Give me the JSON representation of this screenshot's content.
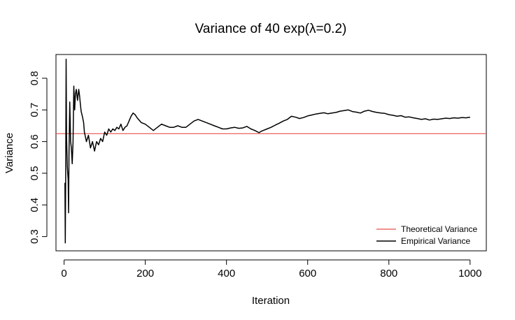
{
  "chart_data": {
    "type": "line",
    "title": "Variance of 40 exp(λ=0.2)",
    "xlabel": "Iteration",
    "ylabel": "Variance",
    "xlim": [
      -20,
      1040
    ],
    "ylim": [
      0.255,
      0.875
    ],
    "xticks": [
      0,
      200,
      400,
      600,
      800,
      1000
    ],
    "yticks": [
      0.3,
      0.4,
      0.5,
      0.6,
      0.7,
      0.8
    ],
    "grid": false,
    "legend_position": "bottom-right",
    "reference_line": {
      "name": "Theoretical Variance",
      "y": 0.625,
      "color": "#e8514e"
    },
    "series": [
      {
        "name": "Empirical Variance",
        "color": "#000000",
        "x": [
          2,
          3,
          4,
          5,
          6,
          8,
          10,
          11,
          12,
          14,
          16,
          18,
          20,
          22,
          24,
          26,
          28,
          30,
          33,
          36,
          38,
          40,
          42,
          45,
          48,
          50,
          55,
          60,
          65,
          70,
          75,
          80,
          85,
          90,
          95,
          100,
          105,
          110,
          115,
          120,
          125,
          130,
          135,
          140,
          145,
          150,
          155,
          160,
          165,
          170,
          175,
          180,
          190,
          200,
          210,
          220,
          230,
          240,
          250,
          260,
          270,
          280,
          290,
          300,
          310,
          320,
          330,
          340,
          350,
          360,
          370,
          380,
          390,
          400,
          410,
          420,
          430,
          440,
          450,
          460,
          470,
          480,
          485,
          490,
          500,
          510,
          520,
          530,
          540,
          550,
          560,
          570,
          580,
          590,
          600,
          610,
          620,
          630,
          640,
          650,
          660,
          670,
          680,
          690,
          700,
          710,
          720,
          730,
          740,
          750,
          760,
          770,
          780,
          790,
          800,
          810,
          820,
          830,
          840,
          850,
          860,
          870,
          880,
          890,
          900,
          910,
          920,
          930,
          940,
          950,
          960,
          970,
          980,
          990,
          1000
        ],
        "y": [
          0.47,
          0.28,
          0.5,
          0.86,
          0.62,
          0.52,
          0.48,
          0.375,
          0.56,
          0.725,
          0.6,
          0.58,
          0.53,
          0.6,
          0.775,
          0.7,
          0.75,
          0.765,
          0.73,
          0.765,
          0.745,
          0.72,
          0.695,
          0.68,
          0.66,
          0.63,
          0.6,
          0.62,
          0.58,
          0.6,
          0.57,
          0.6,
          0.59,
          0.61,
          0.6,
          0.63,
          0.62,
          0.64,
          0.63,
          0.64,
          0.635,
          0.645,
          0.64,
          0.655,
          0.635,
          0.645,
          0.65,
          0.665,
          0.68,
          0.69,
          0.685,
          0.675,
          0.66,
          0.655,
          0.645,
          0.635,
          0.645,
          0.655,
          0.65,
          0.645,
          0.645,
          0.65,
          0.645,
          0.645,
          0.655,
          0.665,
          0.67,
          0.665,
          0.66,
          0.655,
          0.65,
          0.645,
          0.64,
          0.64,
          0.643,
          0.645,
          0.642,
          0.643,
          0.648,
          0.64,
          0.635,
          0.628,
          0.632,
          0.635,
          0.64,
          0.645,
          0.652,
          0.658,
          0.665,
          0.67,
          0.68,
          0.677,
          0.673,
          0.676,
          0.681,
          0.684,
          0.687,
          0.689,
          0.691,
          0.688,
          0.69,
          0.692,
          0.696,
          0.698,
          0.7,
          0.695,
          0.693,
          0.69,
          0.696,
          0.699,
          0.695,
          0.692,
          0.69,
          0.689,
          0.685,
          0.683,
          0.68,
          0.682,
          0.677,
          0.678,
          0.675,
          0.673,
          0.67,
          0.672,
          0.668,
          0.671,
          0.67,
          0.672,
          0.674,
          0.673,
          0.675,
          0.674,
          0.676,
          0.675,
          0.677
        ]
      }
    ]
  }
}
